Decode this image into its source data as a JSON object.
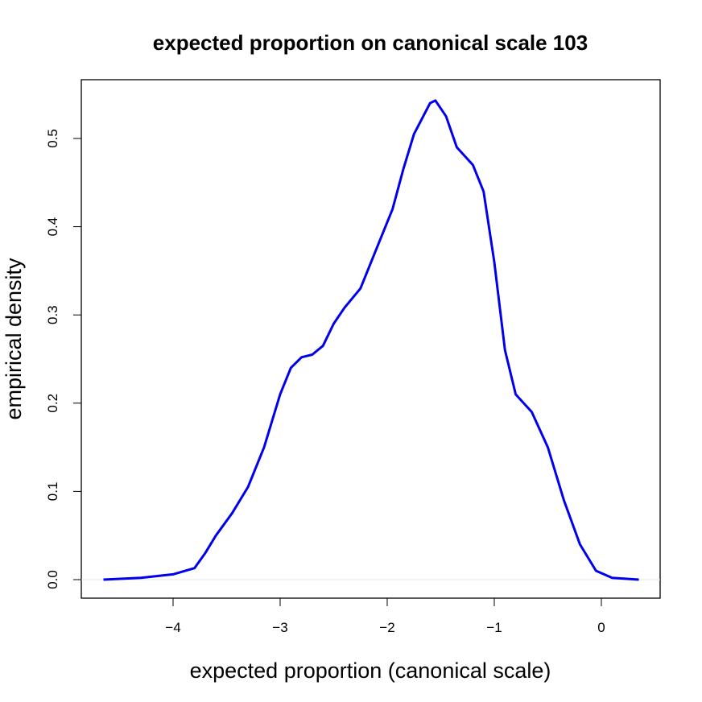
{
  "chart_data": {
    "type": "line",
    "title": "expected proportion on canonical scale 103",
    "x_label": "expected proportion (canonical scale)",
    "y_label": "empirical density",
    "x": [
      -4.65,
      -4.3,
      -4.0,
      -3.8,
      -3.7,
      -3.6,
      -3.45,
      -3.3,
      -3.15,
      -3.0,
      -2.9,
      -2.8,
      -2.7,
      -2.6,
      -2.5,
      -2.4,
      -2.25,
      -2.1,
      -1.95,
      -1.85,
      -1.75,
      -1.6,
      -1.55,
      -1.45,
      -1.35,
      -1.2,
      -1.1,
      -1.0,
      -0.9,
      -0.8,
      -0.65,
      -0.5,
      -0.35,
      -0.2,
      -0.05,
      0.1,
      0.35
    ],
    "series": [
      {
        "name": "density",
        "color": "#0000ee",
        "values": [
          0,
          0.002,
          0.006,
          0.013,
          0.03,
          0.05,
          0.075,
          0.105,
          0.15,
          0.21,
          0.24,
          0.252,
          0.255,
          0.265,
          0.29,
          0.308,
          0.33,
          0.375,
          0.42,
          0.465,
          0.505,
          0.54,
          0.543,
          0.525,
          0.49,
          0.47,
          0.44,
          0.36,
          0.26,
          0.21,
          0.19,
          0.15,
          0.09,
          0.04,
          0.01,
          0.002,
          0
        ]
      }
    ],
    "xlim": [
      -4.857,
      0.549
    ],
    "ylim": [
      -0.021,
      0.5666
    ],
    "xticks": [
      {
        "value": -4,
        "label": "−4"
      },
      {
        "value": -3,
        "label": "−3"
      },
      {
        "value": -2,
        "label": "−2"
      },
      {
        "value": -1,
        "label": "−1"
      },
      0
    ],
    "yticks": [
      {
        "value": 0,
        "label": "0.0"
      },
      0.1,
      0.2,
      0.3,
      0.4,
      0.5
    ],
    "baseline_color": "#e6e6e6"
  }
}
